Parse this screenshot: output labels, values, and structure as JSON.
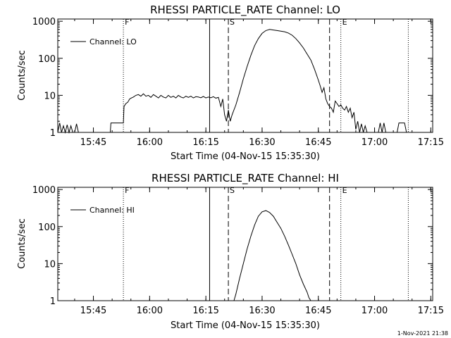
{
  "footer": {
    "timestamp": "1-Nov-2021 21:38"
  },
  "chart_data": [
    {
      "type": "line",
      "title": "RHESSI PARTICLE_RATE Channel: LO",
      "xlabel": "Start Time (04-Nov-15 15:35:30)",
      "ylabel": "Counts/sec",
      "yscale": "log",
      "ylim": [
        1,
        1000
      ],
      "xlim": [
        "15:35:30",
        "17:15:30"
      ],
      "x_ticks": [
        "15:45",
        "16:00",
        "16:15",
        "16:30",
        "16:45",
        "17:00",
        "17:15"
      ],
      "y_ticks": [
        "1",
        "10",
        "100",
        "1000"
      ],
      "legend": {
        "placement": "top-left",
        "entries": [
          "Channel: LO"
        ]
      },
      "markers": [
        {
          "label": "F",
          "time": "15:53",
          "style": "dotted"
        },
        {
          "label": "",
          "time": "16:16",
          "style": "solid"
        },
        {
          "label": "S",
          "time": "16:21",
          "style": "dashed"
        },
        {
          "label": "",
          "time": "16:48",
          "style": "dashed"
        },
        {
          "label": "E",
          "time": "16:51",
          "style": "dotted"
        },
        {
          "label": "",
          "time": "17:09",
          "style": "dotted"
        }
      ],
      "series": [
        {
          "name": "Channel: LO",
          "points": [
            [
              "15:35:30",
              1
            ],
            [
              "15:36:00",
              1.8
            ],
            [
              "15:36:30",
              1
            ],
            [
              "15:37:00",
              1.5
            ],
            [
              "15:37:30",
              1
            ],
            [
              "15:38:00",
              1.6
            ],
            [
              "15:38:30",
              1
            ],
            [
              "15:39:00",
              1.5
            ],
            [
              "15:39:30",
              1
            ],
            [
              "15:40:00",
              1
            ],
            [
              "15:40:30",
              1.7
            ],
            [
              "15:41:00",
              1
            ],
            [
              "15:45:00",
              1
            ],
            [
              "15:49:30",
              1
            ],
            [
              "15:49:40",
              1.8
            ],
            [
              "15:52:00",
              1.8
            ],
            [
              "15:53:00",
              1.8
            ],
            [
              "15:53:10",
              5
            ],
            [
              "15:53:40",
              6
            ],
            [
              "15:54:10",
              6.5
            ],
            [
              "15:54:40",
              8
            ],
            [
              "15:55:10",
              8.5
            ],
            [
              "15:55:40",
              9
            ],
            [
              "15:56:20",
              10
            ],
            [
              "15:57:00",
              10.5
            ],
            [
              "15:57:40",
              9.5
            ],
            [
              "15:58:20",
              11
            ],
            [
              "15:59:00",
              9.5
            ],
            [
              "15:59:40",
              10
            ],
            [
              "16:00:20",
              8.8
            ],
            [
              "16:01:00",
              10.5
            ],
            [
              "16:01:40",
              9.5
            ],
            [
              "16:02:20",
              8.5
            ],
            [
              "16:03:00",
              10
            ],
            [
              "16:03:40",
              9
            ],
            [
              "16:04:20",
              8.5
            ],
            [
              "16:05:00",
              10
            ],
            [
              "16:05:40",
              8.8
            ],
            [
              "16:06:20",
              9.5
            ],
            [
              "16:07:00",
              8.5
            ],
            [
              "16:07:40",
              10
            ],
            [
              "16:08:20",
              9
            ],
            [
              "16:09:00",
              8.5
            ],
            [
              "16:09:40",
              9.5
            ],
            [
              "16:10:20",
              8.8
            ],
            [
              "16:11:00",
              9.5
            ],
            [
              "16:11:40",
              8.5
            ],
            [
              "16:12:20",
              9.2
            ],
            [
              "16:13:00",
              9
            ],
            [
              "16:13:40",
              8.6
            ],
            [
              "16:14:20",
              9.3
            ],
            [
              "16:15:00",
              8.5
            ],
            [
              "16:15:40",
              9
            ],
            [
              "16:16:20",
              8.6
            ],
            [
              "16:17:00",
              9.2
            ],
            [
              "16:17:40",
              8.4
            ],
            [
              "16:18:20",
              8.8
            ],
            [
              "16:19:00",
              5
            ],
            [
              "16:19:30",
              8
            ],
            [
              "16:20:00",
              3
            ],
            [
              "16:20:30",
              2
            ],
            [
              "16:21:00",
              4
            ],
            [
              "16:21:30",
              2
            ],
            [
              "16:22:00",
              3
            ],
            [
              "16:23:00",
              5.5
            ],
            [
              "16:24:00",
              12
            ],
            [
              "16:25:00",
              28
            ],
            [
              "16:26:00",
              60
            ],
            [
              "16:27:00",
              120
            ],
            [
              "16:28:00",
              220
            ],
            [
              "16:29:00",
              340
            ],
            [
              "16:30:00",
              470
            ],
            [
              "16:31:00",
              560
            ],
            [
              "16:32:00",
              600
            ],
            [
              "16:33:00",
              580
            ],
            [
              "16:34:00",
              560
            ],
            [
              "16:35:00",
              540
            ],
            [
              "16:36:00",
              520
            ],
            [
              "16:37:00",
              480
            ],
            [
              "16:38:00",
              420
            ],
            [
              "16:39:00",
              340
            ],
            [
              "16:40:00",
              260
            ],
            [
              "16:41:00",
              190
            ],
            [
              "16:42:00",
              130
            ],
            [
              "16:43:00",
              90
            ],
            [
              "16:44:00",
              50
            ],
            [
              "16:45:00",
              26
            ],
            [
              "16:45:30",
              18
            ],
            [
              "16:46:00",
              12
            ],
            [
              "16:46:30",
              16
            ],
            [
              "16:47:00",
              8
            ],
            [
              "16:47:30",
              6
            ],
            [
              "16:48:00",
              5
            ],
            [
              "16:48:30",
              4.5
            ],
            [
              "16:49:00",
              3.5
            ],
            [
              "16:49:30",
              7
            ],
            [
              "16:50:00",
              6
            ],
            [
              "16:50:30",
              5
            ],
            [
              "16:51:00",
              5.5
            ],
            [
              "16:51:30",
              4.5
            ],
            [
              "16:52:00",
              4
            ],
            [
              "16:52:30",
              5
            ],
            [
              "16:53:00",
              3.5
            ],
            [
              "16:53:30",
              4.5
            ],
            [
              "16:54:00",
              2.5
            ],
            [
              "16:54:30",
              3.5
            ],
            [
              "16:55:00",
              1.2
            ],
            [
              "16:55:30",
              2
            ],
            [
              "16:56:00",
              1
            ],
            [
              "16:56:30",
              1.7
            ],
            [
              "16:57:00",
              1
            ],
            [
              "16:57:30",
              1.5
            ],
            [
              "16:58:00",
              1
            ],
            [
              "17:01:00",
              1
            ],
            [
              "17:01:30",
              1.8
            ],
            [
              "17:02:00",
              1
            ],
            [
              "17:02:30",
              1.8
            ],
            [
              "17:03:00",
              1
            ],
            [
              "17:06:00",
              1
            ],
            [
              "17:06:30",
              1.8
            ],
            [
              "17:08:00",
              1.8
            ],
            [
              "17:08:30",
              1
            ],
            [
              "17:15:30",
              1
            ]
          ]
        }
      ]
    },
    {
      "type": "line",
      "title": "RHESSI PARTICLE_RATE Channel: HI",
      "xlabel": "Start Time (04-Nov-15 15:35:30)",
      "ylabel": "Counts/sec",
      "yscale": "log",
      "ylim": [
        1,
        1000
      ],
      "xlim": [
        "15:35:30",
        "17:15:30"
      ],
      "x_ticks": [
        "15:45",
        "16:00",
        "16:15",
        "16:30",
        "16:45",
        "17:00",
        "17:15"
      ],
      "y_ticks": [
        "1",
        "10",
        "100",
        "1000"
      ],
      "legend": {
        "placement": "top-left",
        "entries": [
          "Channel: HI"
        ]
      },
      "markers": [
        {
          "label": "F",
          "time": "15:53",
          "style": "dotted"
        },
        {
          "label": "",
          "time": "16:16",
          "style": "solid"
        },
        {
          "label": "S",
          "time": "16:21",
          "style": "dashed"
        },
        {
          "label": "",
          "time": "16:48",
          "style": "dashed"
        },
        {
          "label": "E",
          "time": "16:51",
          "style": "dotted"
        },
        {
          "label": "",
          "time": "17:09",
          "style": "dotted"
        }
      ],
      "series": [
        {
          "name": "Channel: HI",
          "points": [
            [
              "16:22:30",
              1
            ],
            [
              "16:23:00",
              1.5
            ],
            [
              "16:24:00",
              4
            ],
            [
              "16:25:00",
              10
            ],
            [
              "16:26:00",
              25
            ],
            [
              "16:27:00",
              55
            ],
            [
              "16:28:00",
              110
            ],
            [
              "16:29:00",
              190
            ],
            [
              "16:30:00",
              250
            ],
            [
              "16:31:00",
              270
            ],
            [
              "16:32:00",
              240
            ],
            [
              "16:33:00",
              190
            ],
            [
              "16:34:00",
              130
            ],
            [
              "16:35:00",
              90
            ],
            [
              "16:36:00",
              55
            ],
            [
              "16:37:00",
              32
            ],
            [
              "16:38:00",
              18
            ],
            [
              "16:39:00",
              10
            ],
            [
              "16:40:00",
              5
            ],
            [
              "16:41:00",
              2.8
            ],
            [
              "16:42:00",
              1.7
            ],
            [
              "16:42:30",
              1.2
            ],
            [
              "16:43:00",
              1
            ]
          ]
        }
      ]
    }
  ]
}
